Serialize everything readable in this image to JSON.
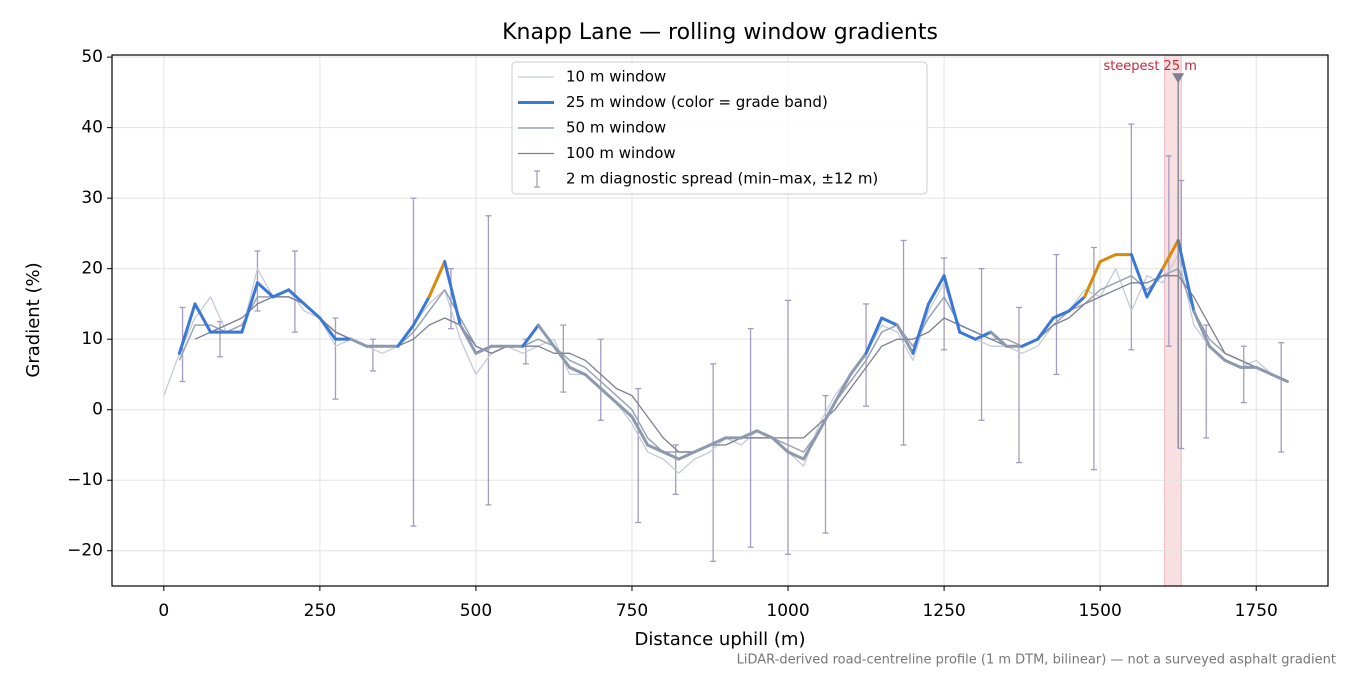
{
  "chart_data": {
    "type": "line",
    "title": "Knapp Lane — rolling window gradients",
    "xlabel": "Distance uphill (m)",
    "ylabel": "Gradient (%)",
    "footnote": "LiDAR-derived road-centreline profile (1 m DTM, bilinear) — not a surveyed asphalt gradient",
    "xlim": [
      -83,
      1865
    ],
    "ylim": [
      -25,
      50.3
    ],
    "xticks": [
      0,
      250,
      500,
      750,
      1000,
      1250,
      1500,
      1750
    ],
    "yticks": [
      {
        "value": -20,
        "label": "−20"
      },
      {
        "value": -10,
        "label": "−10"
      },
      0,
      10,
      20,
      30,
      40,
      50
    ],
    "grid": true,
    "legend": "upper center",
    "x": [
      0,
      25,
      50,
      75,
      100,
      125,
      150,
      175,
      200,
      225,
      250,
      275,
      300,
      325,
      350,
      375,
      400,
      425,
      450,
      475,
      500,
      525,
      550,
      575,
      600,
      625,
      650,
      675,
      700,
      725,
      750,
      775,
      800,
      825,
      850,
      875,
      900,
      925,
      950,
      975,
      1000,
      1025,
      1050,
      1075,
      1100,
      1125,
      1150,
      1175,
      1200,
      1225,
      1250,
      1275,
      1300,
      1325,
      1350,
      1375,
      1400,
      1425,
      1450,
      1475,
      1500,
      1525,
      1550,
      1575,
      1600,
      1625,
      1650,
      1675,
      1700,
      1725,
      1750,
      1775,
      1800
    ],
    "series": [
      {
        "name": "10 m window",
        "color": "#c5ccd6",
        "width": 1.3,
        "values": [
          2,
          8,
          13,
          16,
          11,
          11,
          20,
          16,
          17,
          14,
          13,
          9,
          10,
          9,
          8,
          9,
          12,
          15,
          17,
          10,
          5,
          8,
          9,
          8,
          9,
          10,
          5,
          5,
          3,
          1,
          -2,
          -6,
          -7,
          -9,
          -7,
          -6,
          -4,
          -5,
          -3,
          -4,
          -6,
          -8,
          -2,
          2,
          5,
          8,
          12,
          11,
          7,
          14,
          18,
          11,
          10,
          9,
          9,
          8,
          9,
          12,
          14,
          17,
          16,
          20,
          14,
          19,
          18,
          22,
          12,
          9,
          7,
          6,
          7,
          5,
          4
        ]
      },
      {
        "name": "25 m window (color = grade band)",
        "color": "#3a78d8",
        "width": 3,
        "values": [
          null,
          8,
          15,
          11,
          11,
          11,
          18,
          16,
          17,
          15,
          13,
          10,
          10,
          9,
          9,
          9,
          12,
          16,
          21,
          12,
          8,
          9,
          9,
          9,
          12,
          9,
          6,
          5,
          3,
          1,
          -1,
          -5,
          -6,
          -7,
          -6,
          -5,
          -4,
          -4,
          -3,
          -4,
          -6,
          -7,
          -3,
          1,
          5,
          8,
          13,
          12,
          8,
          15,
          19,
          11,
          10,
          11,
          9,
          9,
          10,
          13,
          14,
          16,
          21,
          22,
          22,
          16,
          20,
          24,
          14,
          9,
          7,
          6,
          6,
          5,
          4
        ],
        "colors": [
          "#8d99ae",
          "#8d99ae",
          "#3a78d8",
          "#3a78d8",
          "#3a78d8",
          "#3a78d8",
          "#3a78d8",
          "#3a78d8",
          "#3a78d8",
          "#3a78d8",
          "#3a78d8",
          "#3a78d8",
          "#3a78d8",
          "#8d99ae",
          "#8d99ae",
          "#8d99ae",
          "#3a78d8",
          "#3a78d8",
          "#d98a0a",
          "#3a78d8",
          "#8d99ae",
          "#8d99ae",
          "#8d99ae",
          "#8d99ae",
          "#3a78d8",
          "#8d99ae",
          "#8d99ae",
          "#8d99ae",
          "#8d99ae",
          "#8d99ae",
          "#8d99ae",
          "#8d99ae",
          "#8d99ae",
          "#8d99ae",
          "#8d99ae",
          "#8d99ae",
          "#8d99ae",
          "#8d99ae",
          "#8d99ae",
          "#8d99ae",
          "#8d99ae",
          "#8d99ae",
          "#8d99ae",
          "#8d99ae",
          "#8d99ae",
          "#8d99ae",
          "#3a78d8",
          "#3a78d8",
          "#8d99ae",
          "#3a78d8",
          "#3a78d8",
          "#3a78d8",
          "#3a78d8",
          "#3a78d8",
          "#8d99ae",
          "#8d99ae",
          "#3a78d8",
          "#3a78d8",
          "#3a78d8",
          "#3a78d8",
          "#d98a0a",
          "#d98a0a",
          "#d98a0a",
          "#3a78d8",
          "#3a78d8",
          "#d98a0a",
          "#3a78d8",
          "#8d99ae",
          "#8d99ae",
          "#8d99ae",
          "#8d99ae",
          "#8d99ae",
          "#8d99ae"
        ]
      },
      {
        "name": "50 m window",
        "color": "#9aa3b5",
        "width": 1.5,
        "values": [
          null,
          7,
          12,
          12,
          11,
          12,
          16,
          16,
          16,
          15,
          13,
          11,
          10,
          9,
          9,
          9,
          11,
          14,
          17,
          13,
          9,
          8,
          9,
          9,
          10,
          9,
          7,
          6,
          4,
          2,
          0,
          -4,
          -6,
          -6,
          -6,
          -5,
          -4,
          -4,
          -4,
          -4,
          -5,
          -6,
          -3,
          1,
          4,
          7,
          11,
          12,
          9,
          13,
          16,
          12,
          11,
          10,
          10,
          9,
          10,
          12,
          14,
          15,
          17,
          18,
          19,
          17,
          19,
          20,
          14,
          10,
          8,
          7,
          6,
          5,
          4
        ]
      },
      {
        "name": "100 m window",
        "color": "#7c8092",
        "width": 1.3,
        "values": [
          null,
          null,
          10,
          11,
          12,
          13,
          15,
          16,
          16,
          15,
          13,
          11,
          10,
          9,
          9,
          9,
          10,
          12,
          13,
          12,
          9,
          8,
          9,
          9,
          9,
          8,
          8,
          7,
          5,
          3,
          2,
          -1,
          -4,
          -6,
          -6,
          -5,
          -5,
          -4,
          -4,
          -4,
          -4,
          -4,
          -2,
          0,
          3,
          6,
          9,
          10,
          10,
          11,
          13,
          12,
          11,
          10,
          9,
          9,
          10,
          12,
          13,
          15,
          16,
          17,
          18,
          18,
          19,
          19,
          16,
          12,
          8,
          7,
          6,
          5,
          null
        ]
      }
    ],
    "errorbars": {
      "name": "2 m diagnostic spread (min–max, ±12 m)",
      "color": "#a49cc0",
      "x": [
        30,
        90,
        150,
        210,
        275,
        335,
        400,
        460,
        520,
        580,
        640,
        700,
        760,
        820,
        880,
        940,
        1000,
        1060,
        1125,
        1185,
        1250,
        1310,
        1370,
        1430,
        1490,
        1550,
        1610,
        1630,
        1670,
        1730,
        1790
      ],
      "lo": [
        4,
        7.5,
        14,
        11,
        1.5,
        5.5,
        -16.5,
        11.5,
        -13.5,
        6.5,
        2.5,
        -1.5,
        -16,
        -12,
        -21.5,
        -19.5,
        -20.5,
        -17.5,
        0.5,
        -5,
        8.5,
        -1.5,
        -7.5,
        5,
        -8.5,
        8.5,
        9,
        -5.5,
        -4,
        1,
        -6
      ],
      "hi": [
        14.5,
        12.5,
        22.5,
        22.5,
        13,
        10,
        30,
        20,
        27.5,
        10,
        12,
        10,
        3,
        -5,
        6.5,
        11.5,
        15.5,
        2,
        15,
        24,
        21.5,
        20,
        14.5,
        22,
        23,
        40.5,
        36,
        32.5,
        12,
        9,
        9.5
      ]
    },
    "annotation": {
      "text": "steepest 25 m",
      "x": 1625,
      "y": 47,
      "band": [
        1603,
        1630
      ],
      "color": "#c8283c"
    }
  }
}
